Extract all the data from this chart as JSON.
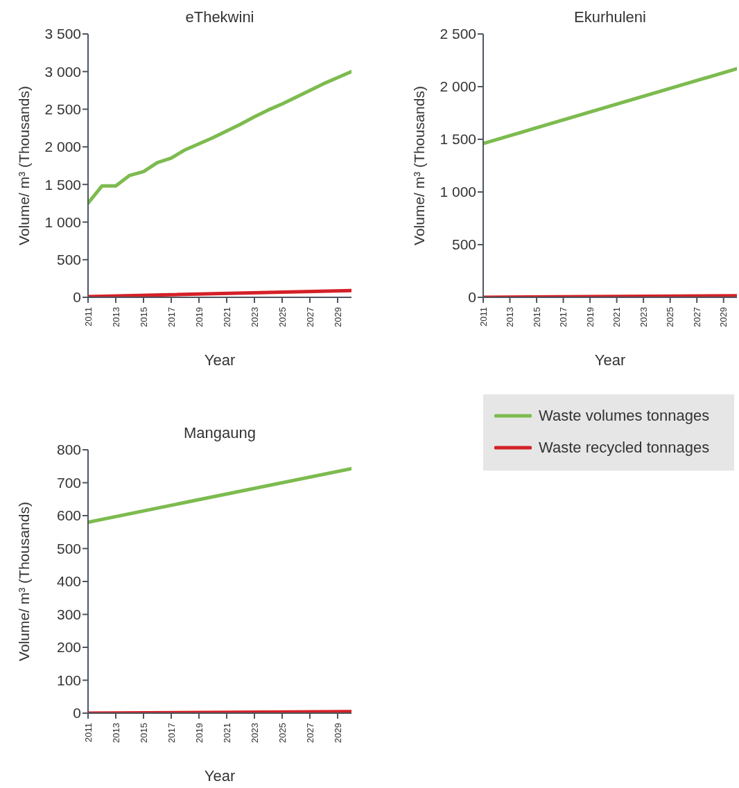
{
  "chart_data": [
    {
      "type": "line",
      "title": "eThekwini",
      "xlabel": "Year",
      "ylabel": "Volume/ m³ (Thousands)",
      "xlim": [
        2011,
        2030
      ],
      "xticks": [
        2011,
        2013,
        2015,
        2017,
        2019,
        2021,
        2023,
        2025,
        2027,
        2029
      ],
      "ylim": [
        0,
        3500
      ],
      "yticks": [
        0,
        500,
        {
          "value": 1000,
          "label": "1 000"
        },
        {
          "value": 1500,
          "label": "1 500"
        },
        {
          "value": 2000,
          "label": "2 000"
        },
        {
          "value": 2500,
          "label": "2 500"
        },
        {
          "value": 3000,
          "label": "3 000"
        },
        {
          "value": 3500,
          "label": "3 500"
        }
      ],
      "grid": false,
      "legend": false,
      "marker": "none",
      "series": [
        {
          "color": "#7dbb4f",
          "x": [
            2011,
            2012,
            2013,
            2014,
            2015,
            2016,
            2017,
            2018,
            2019,
            2020,
            2021,
            2022,
            2023,
            2024,
            2025,
            2026,
            2027,
            2028,
            2029,
            2030
          ],
          "values": [
            1250,
            1480,
            1480,
            1620,
            1670,
            1790,
            1850,
            1960,
            2040,
            2120,
            2210,
            2300,
            2400,
            2490,
            2570,
            2660,
            2750,
            2840,
            2920,
            3000
          ]
        },
        {
          "color": "#d42027",
          "x": [
            2011,
            2030
          ],
          "values": [
            10,
            90
          ]
        }
      ]
    },
    {
      "type": "line",
      "title": "Ekurhuleni",
      "xlabel": "Year",
      "ylabel": "Volume/ m³ (Thousands)",
      "xlim": [
        2011,
        2030
      ],
      "xticks": [
        2011,
        2013,
        2015,
        2017,
        2019,
        2021,
        2023,
        2025,
        2027,
        2029
      ],
      "ylim": [
        0,
        2500
      ],
      "yticks": [
        0,
        500,
        {
          "value": 1000,
          "label": "1 000"
        },
        {
          "value": 1500,
          "label": "1 500"
        },
        {
          "value": 2000,
          "label": "2 000"
        },
        {
          "value": 2500,
          "label": "2 500"
        }
      ],
      "grid": false,
      "legend": false,
      "marker": "none",
      "series": [
        {
          "color": "#7dbb4f",
          "x": [
            2011,
            2030
          ],
          "values": [
            1460,
            2170
          ]
        },
        {
          "color": "#d42027",
          "x": [
            2011,
            2030
          ],
          "values": [
            0,
            15
          ]
        }
      ]
    },
    {
      "type": "line",
      "title": "Mangaung",
      "xlabel": "Year",
      "ylabel": "Volume/ m³ (Thousands)",
      "xlim": [
        2011,
        2030
      ],
      "xticks": [
        2011,
        2013,
        2015,
        2017,
        2019,
        2021,
        2023,
        2025,
        2027,
        2029
      ],
      "ylim": [
        0,
        800
      ],
      "yticks": [
        0,
        100,
        200,
        300,
        400,
        500,
        600,
        700,
        800
      ],
      "grid": false,
      "legend": "right",
      "marker": "none",
      "series": [
        {
          "name": "Waste volumes tonnages",
          "color": "#7dbb4f",
          "x": [
            2011,
            2030
          ],
          "values": [
            580,
            743
          ]
        },
        {
          "name": "Waste recycled tonnages",
          "color": "#d42027",
          "x": [
            2011,
            2030
          ],
          "values": [
            0,
            5
          ]
        }
      ]
    }
  ]
}
